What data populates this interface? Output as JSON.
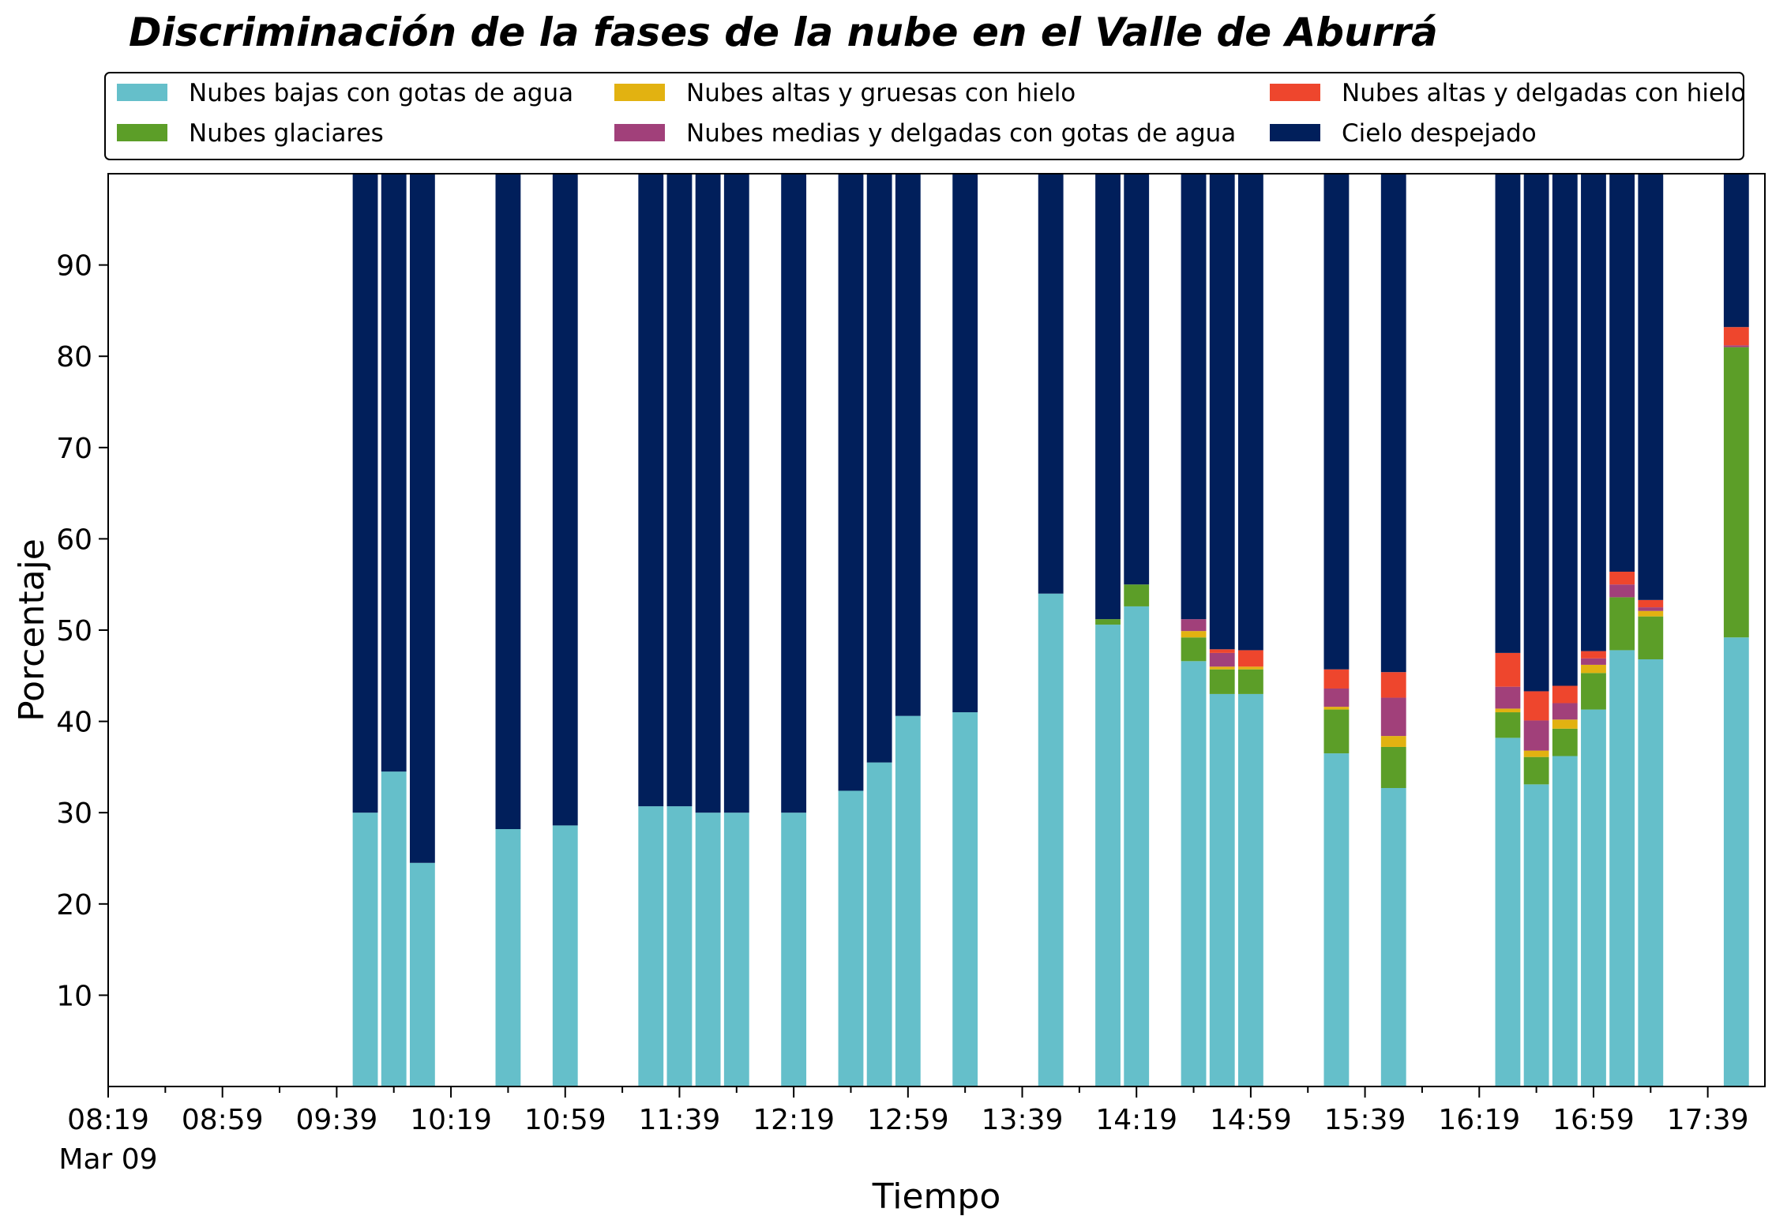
{
  "chart_data": {
    "type": "bar",
    "stacked": true,
    "title": "Discriminación de la fases de la nube en el Valle de Aburrá",
    "xlabel": "Tiempo",
    "ylabel": "Porcentaje",
    "ylim": [
      0,
      100
    ],
    "yticks": [
      10,
      20,
      30,
      40,
      50,
      60,
      70,
      80,
      90
    ],
    "xlim": [
      "08:19",
      "17:59"
    ],
    "xticks": [
      {
        "time": "08:19",
        "label": "08:19",
        "sublabel": "Mar 09"
      },
      {
        "time": "08:59",
        "label": "08:59"
      },
      {
        "time": "09:39",
        "label": "09:39"
      },
      {
        "time": "10:19",
        "label": "10:19"
      },
      {
        "time": "10:59",
        "label": "10:59"
      },
      {
        "time": "11:39",
        "label": "11:39"
      },
      {
        "time": "12:19",
        "label": "12:19"
      },
      {
        "time": "12:59",
        "label": "12:59"
      },
      {
        "time": "13:39",
        "label": "13:39"
      },
      {
        "time": "14:19",
        "label": "14:19"
      },
      {
        "time": "14:59",
        "label": "14:59"
      },
      {
        "time": "15:39",
        "label": "15:39"
      },
      {
        "time": "16:19",
        "label": "16:19"
      },
      {
        "time": "16:59",
        "label": "16:59"
      },
      {
        "time": "17:39",
        "label": "17:39"
      }
    ],
    "grid": false,
    "legend_position": "top",
    "x": [
      "09:49",
      "09:59",
      "10:09",
      "10:39",
      "10:59",
      "11:29",
      "11:39",
      "11:49",
      "11:59",
      "12:19",
      "12:39",
      "12:49",
      "12:59",
      "13:19",
      "13:49",
      "14:09",
      "14:19",
      "14:39",
      "14:49",
      "14:59",
      "15:29",
      "15:49",
      "16:29",
      "16:39",
      "16:49",
      "16:59",
      "17:09",
      "17:19",
      "17:49"
    ],
    "series": [
      {
        "name": "Nubes bajas con gotas de agua",
        "color": "#65bfca",
        "values": [
          30,
          34.5,
          24.5,
          28.2,
          28.6,
          30.7,
          30.7,
          30,
          30,
          30,
          32.4,
          35.5,
          40.6,
          41,
          54,
          50.6,
          52.6,
          46.6,
          43,
          43,
          36.5,
          32.7,
          38.2,
          33.1,
          36.2,
          41.3,
          47.8,
          46.8,
          49.2
        ]
      },
      {
        "name": "Nubes glaciares",
        "color": "#5c9e28",
        "values": [
          0,
          0,
          0,
          0,
          0,
          0,
          0,
          0,
          0,
          0,
          0,
          0,
          0,
          0,
          0,
          0.6,
          2.4,
          2.6,
          2.7,
          2.7,
          4.8,
          4.5,
          2.8,
          3,
          3,
          4,
          5.8,
          4.7,
          31.8
        ]
      },
      {
        "name": "Nubes altas y gruesas con hielo",
        "color": "#e2b211",
        "values": [
          0,
          0,
          0,
          0,
          0,
          0,
          0,
          0,
          0,
          0,
          0,
          0,
          0,
          0,
          0,
          0,
          0,
          0.7,
          0.3,
          0.3,
          0.3,
          1.2,
          0.4,
          0.7,
          1,
          0.9,
          0,
          0.6,
          0
        ]
      },
      {
        "name": "Nubes medias y delgadas con gotas de agua",
        "color": "#a1407a",
        "values": [
          0,
          0,
          0,
          0,
          0,
          0,
          0,
          0,
          0,
          0,
          0,
          0,
          0,
          0,
          0,
          0,
          0,
          1.3,
          1.5,
          0,
          2,
          4.2,
          2.4,
          3.3,
          1.8,
          0.7,
          1.4,
          0.4,
          0.2
        ]
      },
      {
        "name": "Nubes altas y delgadas con hielo",
        "color": "#ee462d",
        "values": [
          0,
          0,
          0,
          0,
          0,
          0,
          0,
          0,
          0,
          0,
          0,
          0,
          0,
          0,
          0,
          0,
          0,
          0,
          0.4,
          1.8,
          2.1,
          2.8,
          3.7,
          3.2,
          1.9,
          0.8,
          1.4,
          0.8,
          2
        ]
      },
      {
        "name": "Cielo despejado",
        "color": "#011f5b",
        "values": [
          70,
          65.5,
          75.5,
          71.8,
          71.4,
          69.3,
          69.3,
          70,
          70,
          70,
          67.6,
          64.5,
          59.4,
          59,
          46,
          48.8,
          45,
          48.8,
          52.1,
          52.2,
          54.3,
          54.6,
          52.5,
          56.7,
          56.1,
          52.3,
          43.6,
          46.7,
          16.8
        ]
      }
    ]
  }
}
